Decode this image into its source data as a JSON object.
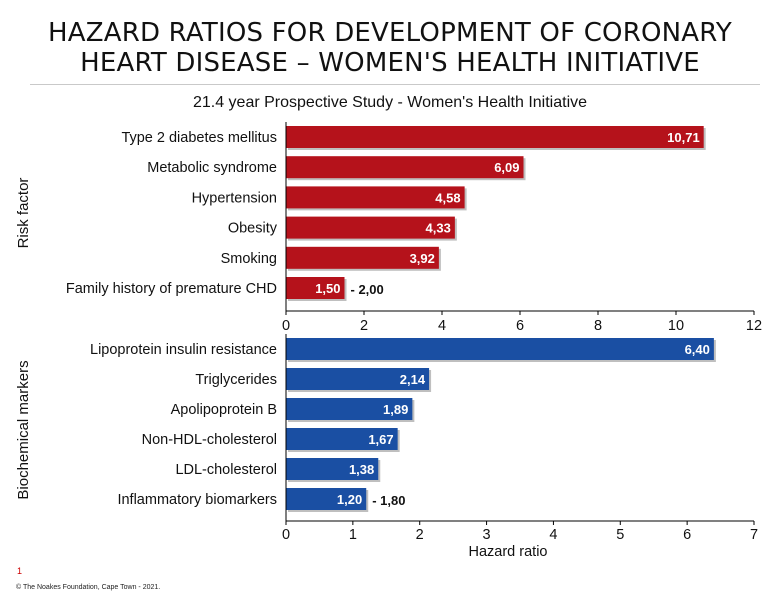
{
  "title_line1": "HAZARD RATIOS FOR DEVELOPMENT OF CORONARY",
  "title_line2": "HEART DISEASE – WOMEN'S HEALTH INITIATIVE",
  "subtitle": "21.4 year Prospective Study -  Women's Health Initiative",
  "page_number": "1",
  "footer": "© The Noakes Foundation, Cape Town - 2021.",
  "colors": {
    "risk": "#b5121b",
    "biochem": "#1a4fa3",
    "axis": "#000000"
  },
  "chart_data": [
    {
      "type": "bar",
      "orientation": "horizontal",
      "ylabel": "Risk factor",
      "xlim": [
        0,
        12
      ],
      "xticks": [
        "0",
        "2",
        "4",
        "6",
        "8",
        "10",
        "12"
      ],
      "categories": [
        "Type 2 diabetes mellitus",
        "Metabolic syndrome",
        "Hypertension",
        "Obesity",
        "Smoking",
        "Family history of premature CHD"
      ],
      "values": [
        10.71,
        6.09,
        4.58,
        4.33,
        3.92,
        1.5
      ],
      "value_labels": [
        "10,71",
        "6,09",
        "4,58",
        "4,33",
        "3,92",
        "1,50"
      ],
      "range_labels": [
        "",
        "",
        "",
        "",
        "",
        "- 2,00"
      ]
    },
    {
      "type": "bar",
      "orientation": "horizontal",
      "ylabel": "Biochemical markers",
      "xlabel": "Hazard ratio",
      "xlim": [
        0,
        7
      ],
      "xticks": [
        "0",
        "1",
        "2",
        "3",
        "4",
        "5",
        "6",
        "7"
      ],
      "categories": [
        "Lipoprotein insulin resistance",
        "Triglycerides",
        "Apolipoprotein B",
        "Non-HDL-cholesterol",
        "LDL-cholesterol",
        "Inflammatory biomarkers"
      ],
      "values": [
        6.4,
        2.14,
        1.89,
        1.67,
        1.38,
        1.2
      ],
      "value_labels": [
        "6,40",
        "2,14",
        "1,89",
        "1,67",
        "1,38",
        "1,20"
      ],
      "range_labels": [
        "",
        "",
        "",
        "",
        "",
        "- 1,80"
      ]
    }
  ]
}
